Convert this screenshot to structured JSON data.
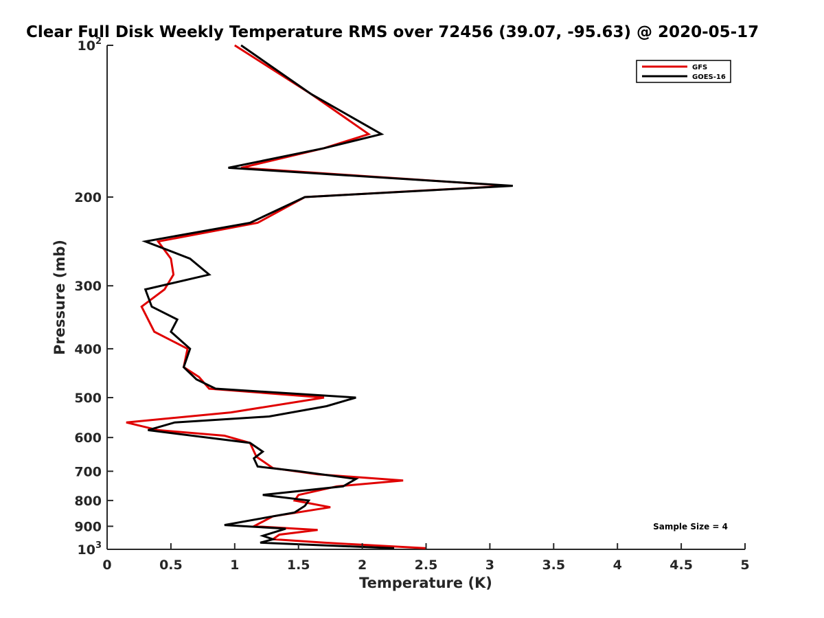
{
  "chart_data": {
    "type": "line",
    "title": "Clear Full Disk Weekly Temperature RMS over 72456 (39.07, -95.63) @ 2020-05-17",
    "xlabel": "Temperature (K)",
    "ylabel": "Pressure (mb)",
    "xlim": [
      0,
      5
    ],
    "ylim": [
      100,
      1000
    ],
    "y_scale": "log",
    "y_reversed": true,
    "x_ticks": [
      0,
      0.5,
      1,
      1.5,
      2,
      2.5,
      3,
      3.5,
      4,
      4.5,
      5
    ],
    "x_tick_labels": [
      "0",
      "0.5",
      "1",
      "1.5",
      "2",
      "2.5",
      "3",
      "3.5",
      "4",
      "4.5",
      "5"
    ],
    "y_ticks": [
      {
        "value": 100,
        "base": "10",
        "exp": "2"
      },
      {
        "value": 200,
        "label": "200"
      },
      {
        "value": 300,
        "label": "300"
      },
      {
        "value": 400,
        "label": "400"
      },
      {
        "value": 500,
        "label": "500"
      },
      {
        "value": 600,
        "label": "600"
      },
      {
        "value": 700,
        "label": "700"
      },
      {
        "value": 800,
        "label": "800"
      },
      {
        "value": 900,
        "label": "900"
      },
      {
        "value": 1000,
        "base": "10",
        "exp": "3"
      }
    ],
    "grid": false,
    "legend_position": "top-right",
    "annotation": "Sample Size = 4",
    "series": [
      {
        "name": "GFS",
        "color": "#e00000",
        "points": [
          [
            1.0,
            100
          ],
          [
            1.6,
            125
          ],
          [
            2.05,
            150
          ],
          [
            1.7,
            160
          ],
          [
            1.05,
            175
          ],
          [
            3.15,
            190
          ],
          [
            1.55,
            200
          ],
          [
            1.18,
            225
          ],
          [
            0.4,
            245
          ],
          [
            0.5,
            265
          ],
          [
            0.52,
            285
          ],
          [
            0.45,
            305
          ],
          [
            0.27,
            330
          ],
          [
            0.37,
            370
          ],
          [
            0.63,
            400
          ],
          [
            0.6,
            435
          ],
          [
            0.72,
            455
          ],
          [
            0.8,
            480
          ],
          [
            1.7,
            500
          ],
          [
            0.97,
            535
          ],
          [
            0.15,
            560
          ],
          [
            0.4,
            580
          ],
          [
            0.92,
            595
          ],
          [
            1.12,
            615
          ],
          [
            1.17,
            655
          ],
          [
            1.3,
            690
          ],
          [
            1.65,
            710
          ],
          [
            2.32,
            730
          ],
          [
            1.8,
            750
          ],
          [
            1.5,
            780
          ],
          [
            1.47,
            800
          ],
          [
            1.75,
            825
          ],
          [
            1.3,
            860
          ],
          [
            1.15,
            900
          ],
          [
            1.65,
            915
          ],
          [
            1.35,
            935
          ],
          [
            1.3,
            955
          ],
          [
            1.7,
            970
          ],
          [
            2.5,
            995
          ]
        ]
      },
      {
        "name": "GOES-16",
        "color": "#000000",
        "points": [
          [
            1.05,
            100
          ],
          [
            1.6,
            125
          ],
          [
            2.15,
            150
          ],
          [
            1.7,
            160
          ],
          [
            0.95,
            175
          ],
          [
            3.18,
            190
          ],
          [
            1.55,
            200
          ],
          [
            1.12,
            225
          ],
          [
            0.3,
            245
          ],
          [
            0.65,
            265
          ],
          [
            0.8,
            285
          ],
          [
            0.3,
            305
          ],
          [
            0.35,
            330
          ],
          [
            0.55,
            350
          ],
          [
            0.5,
            370
          ],
          [
            0.65,
            400
          ],
          [
            0.6,
            435
          ],
          [
            0.7,
            460
          ],
          [
            0.85,
            480
          ],
          [
            1.95,
            500
          ],
          [
            1.72,
            520
          ],
          [
            1.27,
            545
          ],
          [
            0.53,
            560
          ],
          [
            0.32,
            580
          ],
          [
            1.12,
            615
          ],
          [
            1.22,
            640
          ],
          [
            1.15,
            660
          ],
          [
            1.18,
            685
          ],
          [
            1.5,
            700
          ],
          [
            1.95,
            725
          ],
          [
            1.85,
            750
          ],
          [
            1.22,
            780
          ],
          [
            1.58,
            800
          ],
          [
            1.55,
            820
          ],
          [
            1.47,
            845
          ],
          [
            0.92,
            895
          ],
          [
            1.4,
            910
          ],
          [
            1.22,
            940
          ],
          [
            1.3,
            955
          ],
          [
            1.2,
            970
          ],
          [
            2.25,
            995
          ]
        ]
      }
    ]
  }
}
